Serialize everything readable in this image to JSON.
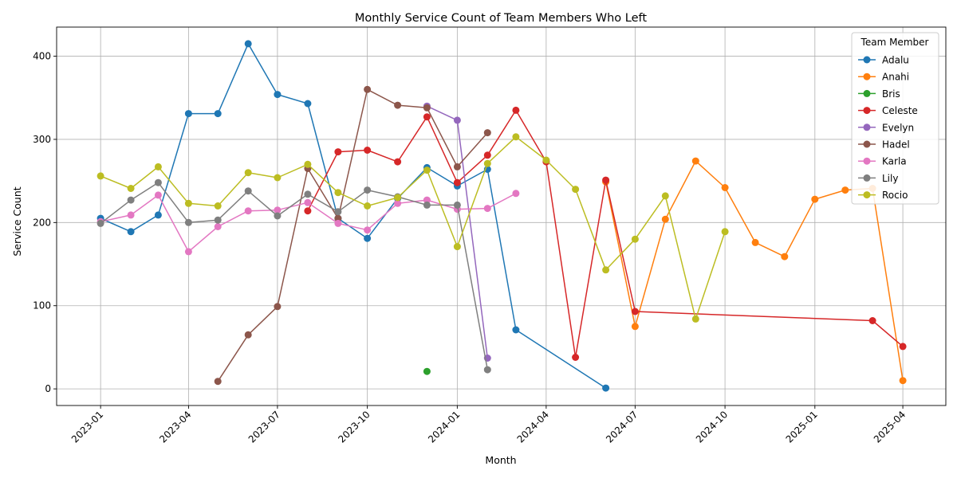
{
  "chart_data": {
    "type": "line",
    "title": "Monthly Service Count of Team Members Who Left",
    "xlabel": "Month",
    "ylabel": "Service Count",
    "legend_title": "Team Member",
    "legend_position": "top-right",
    "grid": true,
    "xlim": [
      "2022-11-17",
      "2025-05-15"
    ],
    "ylim": [
      -20,
      435
    ],
    "x_ticks": [
      "2023-01",
      "2023-04",
      "2023-07",
      "2023-10",
      "2024-01",
      "2024-04",
      "2024-07",
      "2024-10",
      "2025-01",
      "2025-04"
    ],
    "y_ticks": [
      0,
      100,
      200,
      300,
      400
    ],
    "series": [
      {
        "name": "Adalu",
        "color": "#1f77b4",
        "points": [
          [
            "2023-01",
            205
          ],
          [
            "2023-02",
            189
          ],
          [
            "2023-03",
            209
          ],
          [
            "2023-04",
            331
          ],
          [
            "2023-05",
            331
          ],
          [
            "2023-06",
            415
          ],
          [
            "2023-07",
            354
          ],
          [
            "2023-08",
            343
          ],
          [
            "2023-09",
            205
          ],
          [
            "2023-10",
            181
          ],
          [
            "2023-11",
            229
          ],
          [
            "2023-12",
            266
          ],
          [
            "2024-01",
            244
          ],
          [
            "2024-02",
            264
          ],
          [
            "2024-03",
            71
          ],
          [
            "2024-06",
            1
          ]
        ]
      },
      {
        "name": "Anahi",
        "color": "#ff7f0e",
        "points": [
          [
            "2024-06",
            249
          ],
          [
            "2024-07",
            75
          ],
          [
            "2024-08",
            204
          ],
          [
            "2024-09",
            274
          ],
          [
            "2024-10",
            242
          ],
          [
            "2024-11",
            176
          ],
          [
            "2024-12",
            159
          ],
          [
            "2025-01",
            228
          ],
          [
            "2025-02",
            239
          ],
          [
            "2025-03",
            241
          ],
          [
            "2025-04",
            10
          ]
        ]
      },
      {
        "name": "Bris",
        "color": "#2ca02c",
        "points": [
          [
            "2023-12",
            21
          ]
        ]
      },
      {
        "name": "Celeste",
        "color": "#d62728",
        "points": [
          [
            "2023-08",
            214
          ],
          [
            "2023-09",
            285
          ],
          [
            "2023-10",
            287
          ],
          [
            "2023-11",
            273
          ],
          [
            "2023-12",
            327
          ],
          [
            "2024-01",
            248
          ],
          [
            "2024-02",
            281
          ],
          [
            "2024-03",
            335
          ],
          [
            "2024-04",
            273
          ],
          [
            "2024-05",
            38
          ],
          [
            "2024-06",
            251
          ],
          [
            "2024-07",
            93
          ],
          [
            "2025-03",
            82
          ],
          [
            "2025-04",
            51
          ]
        ]
      },
      {
        "name": "Evelyn",
        "color": "#9467bd",
        "points": [
          [
            "2023-12",
            340
          ],
          [
            "2024-01",
            323
          ],
          [
            "2024-02",
            37
          ]
        ]
      },
      {
        "name": "Hadel",
        "color": "#8c564b",
        "points": [
          [
            "2023-05",
            9
          ],
          [
            "2023-06",
            65
          ],
          [
            "2023-07",
            99
          ],
          [
            "2023-08",
            265
          ],
          [
            "2023-09",
            205
          ],
          [
            "2023-10",
            360
          ],
          [
            "2023-11",
            341
          ],
          [
            "2023-12",
            338
          ],
          [
            "2024-01",
            267
          ],
          [
            "2024-02",
            308
          ]
        ]
      },
      {
        "name": "Karla",
        "color": "#e377c2",
        "points": [
          [
            "2023-01",
            201
          ],
          [
            "2023-02",
            209
          ],
          [
            "2023-03",
            233
          ],
          [
            "2023-04",
            165
          ],
          [
            "2023-05",
            195
          ],
          [
            "2023-06",
            214
          ],
          [
            "2023-07",
            215
          ],
          [
            "2023-08",
            224
          ],
          [
            "2023-09",
            199
          ],
          [
            "2023-10",
            191
          ],
          [
            "2023-11",
            223
          ],
          [
            "2023-12",
            227
          ],
          [
            "2024-01",
            216
          ],
          [
            "2024-02",
            217
          ],
          [
            "2024-03",
            235
          ]
        ]
      },
      {
        "name": "Lily",
        "color": "#7f7f7f",
        "points": [
          [
            "2023-01",
            199
          ],
          [
            "2023-02",
            227
          ],
          [
            "2023-03",
            248
          ],
          [
            "2023-04",
            200
          ],
          [
            "2023-05",
            203
          ],
          [
            "2023-06",
            238
          ],
          [
            "2023-07",
            208
          ],
          [
            "2023-08",
            234
          ],
          [
            "2023-09",
            213
          ],
          [
            "2023-10",
            239
          ],
          [
            "2023-11",
            231
          ],
          [
            "2023-12",
            221
          ],
          [
            "2024-01",
            221
          ],
          [
            "2024-02",
            23
          ]
        ]
      },
      {
        "name": "Rocio",
        "color": "#bcbd22",
        "points": [
          [
            "2023-01",
            256
          ],
          [
            "2023-02",
            241
          ],
          [
            "2023-03",
            267
          ],
          [
            "2023-04",
            223
          ],
          [
            "2023-05",
            220
          ],
          [
            "2023-06",
            260
          ],
          [
            "2023-07",
            254
          ],
          [
            "2023-08",
            270
          ],
          [
            "2023-09",
            236
          ],
          [
            "2023-10",
            220
          ],
          [
            "2023-11",
            230
          ],
          [
            "2023-12",
            263
          ],
          [
            "2024-01",
            171
          ],
          [
            "2024-02",
            271
          ],
          [
            "2024-03",
            303
          ],
          [
            "2024-04",
            275
          ],
          [
            "2024-05",
            240
          ],
          [
            "2024-06",
            143
          ],
          [
            "2024-07",
            180
          ],
          [
            "2024-08",
            232
          ],
          [
            "2024-09",
            84
          ],
          [
            "2024-10",
            189
          ]
        ]
      }
    ]
  }
}
